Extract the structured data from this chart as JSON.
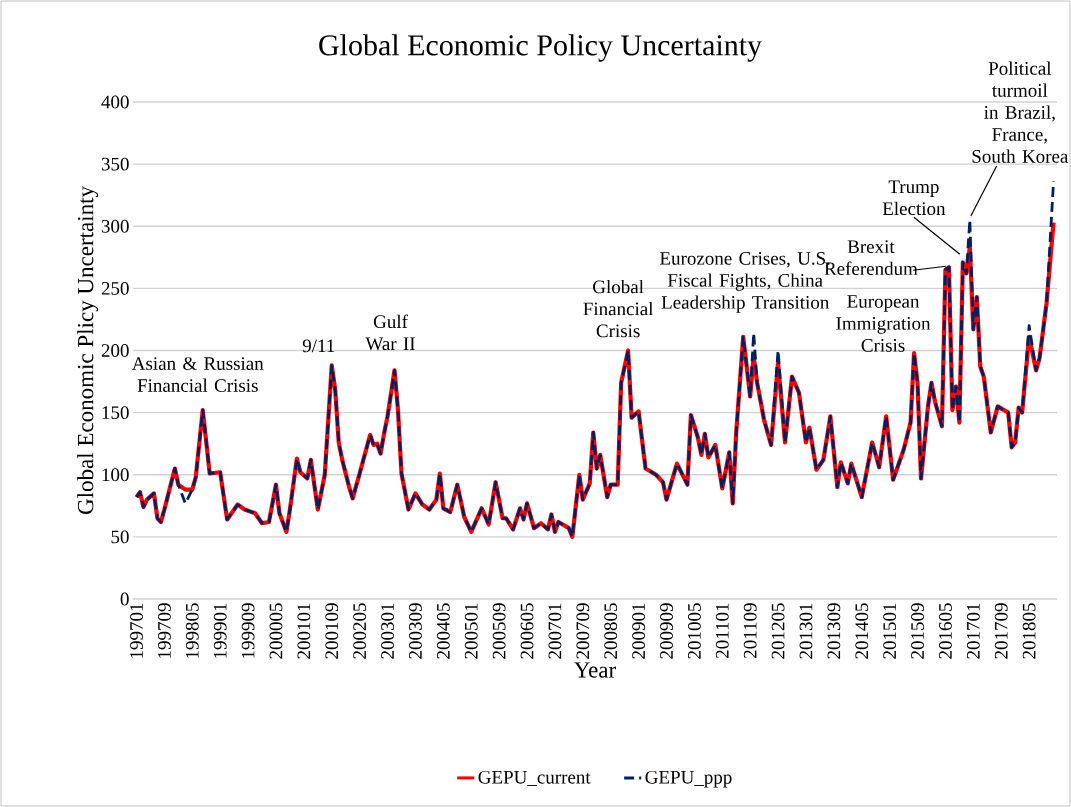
{
  "chart_data": {
    "type": "line",
    "title": "Global Economic Policy Uncertainty",
    "xlabel": "Year",
    "ylabel": "Global Economic Plicy Uncertainty",
    "x": [
      "1997-01",
      "1997-02",
      "1997-03",
      "1997-04",
      "1997-06",
      "1997-07",
      "1997-08",
      "1997-09",
      "1997-12",
      "1998-01",
      "1998-03",
      "1998-05",
      "1998-06",
      "1998-08",
      "1998-10",
      "1999-01",
      "1999-03",
      "1999-06",
      "1999-08",
      "1999-11",
      "2000-01",
      "2000-03",
      "2000-05",
      "2000-06",
      "2000-08",
      "2000-09",
      "2000-11",
      "2000-12",
      "2001-02",
      "2001-03",
      "2001-04",
      "2001-05",
      "2001-07",
      "2001-09",
      "2001-10",
      "2001-11",
      "2001-12",
      "2002-02",
      "2002-03",
      "2002-05",
      "2002-08",
      "2002-09",
      "2002-10",
      "2002-11",
      "2002-12",
      "2003-01",
      "2003-03",
      "2003-04",
      "2003-05",
      "2003-07",
      "2003-09",
      "2003-11",
      "2004-01",
      "2004-03",
      "2004-04",
      "2004-05",
      "2004-07",
      "2004-09",
      "2004-11",
      "2005-01",
      "2005-04",
      "2005-06",
      "2005-08",
      "2005-10",
      "2005-11",
      "2006-01",
      "2006-03",
      "2006-04",
      "2006-05",
      "2006-07",
      "2006-09",
      "2006-11",
      "2006-12",
      "2007-01",
      "2007-02",
      "2007-05",
      "2007-06",
      "2007-08",
      "2007-09",
      "2007-11",
      "2007-12",
      "2008-01",
      "2008-02",
      "2008-04",
      "2008-05",
      "2008-07",
      "2008-08",
      "2008-10",
      "2008-11",
      "2009-01",
      "2009-03",
      "2009-06",
      "2009-08",
      "2009-09",
      "2009-12",
      "2010-03",
      "2010-04",
      "2010-06",
      "2010-07",
      "2010-08",
      "2010-09",
      "2010-11",
      "2011-01",
      "2011-03",
      "2011-04",
      "2011-05",
      "2011-07",
      "2011-09",
      "2011-10",
      "2011-11",
      "2012-01",
      "2012-03",
      "2012-05",
      "2012-07",
      "2012-09",
      "2012-11",
      "2013-01",
      "2013-02",
      "2013-04",
      "2013-06",
      "2013-08",
      "2013-10",
      "2013-11",
      "2014-01",
      "2014-02",
      "2014-05",
      "2014-08",
      "2014-10",
      "2014-12",
      "2015-02",
      "2015-05",
      "2015-07",
      "2015-08",
      "2015-09",
      "2015-10",
      "2015-12",
      "2016-01",
      "2016-02",
      "2016-04",
      "2016-05",
      "2016-06",
      "2016-07",
      "2016-08",
      "2016-09",
      "2016-10",
      "2016-11",
      "2016-12",
      "2017-01",
      "2017-02",
      "2017-03",
      "2017-04",
      "2017-06",
      "2017-08",
      "2017-11",
      "2017-12",
      "2018-01",
      "2018-02",
      "2018-03",
      "2018-05",
      "2018-07",
      "2018-08",
      "2018-10",
      "2018-12"
    ],
    "series": [
      {
        "name": "GEPU_current",
        "color": "#ff0000",
        "line_style": "solid",
        "values": [
          82,
          86,
          74,
          80,
          85,
          65,
          62,
          72,
          105,
          92,
          88,
          88,
          98,
          152,
          101,
          102,
          64,
          76,
          72,
          69,
          61,
          62,
          92,
          69,
          54,
          72,
          113,
          102,
          97,
          112,
          92,
          72,
          100,
          188,
          168,
          126,
          112,
          90,
          81,
          101,
          132,
          124,
          125,
          117,
          133,
          147,
          184,
          152,
          101,
          72,
          85,
          76,
          72,
          80,
          101,
          73,
          70,
          92,
          66,
          54,
          73,
          60,
          94,
          65,
          65,
          56,
          73,
          64,
          77,
          57,
          61,
          56,
          68,
          54,
          62,
          57,
          50,
          100,
          80,
          93,
          134,
          105,
          116,
          82,
          92,
          92,
          174,
          200,
          146,
          151,
          105,
          100,
          94,
          80,
          109,
          92,
          148,
          130,
          116,
          133,
          114,
          124,
          89,
          118,
          77,
          134,
          211,
          163,
          195,
          174,
          144,
          124,
          190,
          126,
          179,
          166,
          126,
          138,
          104,
          112,
          147,
          90,
          110,
          93,
          109,
          82,
          126,
          106,
          147,
          96,
          120,
          142,
          198,
          174,
          97,
          155,
          174,
          159,
          139,
          265,
          267,
          152,
          171,
          142,
          271,
          262,
          283,
          217,
          243,
          187,
          179,
          134,
          155,
          150,
          122,
          126,
          154,
          150,
          211,
          184,
          194,
          238,
          303
        ]
      },
      {
        "name": "GEPU_ppp",
        "color": "#002060",
        "line_style": "dashed",
        "values": [
          82,
          86,
          74,
          80,
          85,
          65,
          62,
          72,
          105,
          92,
          77,
          88,
          98,
          152,
          101,
          102,
          64,
          76,
          72,
          69,
          61,
          62,
          92,
          69,
          54,
          72,
          113,
          102,
          97,
          112,
          92,
          72,
          100,
          188,
          168,
          126,
          112,
          90,
          81,
          101,
          132,
          124,
          125,
          117,
          133,
          147,
          184,
          152,
          101,
          72,
          85,
          76,
          72,
          80,
          101,
          73,
          70,
          92,
          66,
          54,
          73,
          60,
          94,
          65,
          65,
          56,
          73,
          64,
          77,
          57,
          61,
          56,
          68,
          54,
          62,
          57,
          50,
          100,
          80,
          93,
          134,
          105,
          116,
          82,
          92,
          92,
          174,
          200,
          146,
          151,
          105,
          100,
          94,
          80,
          109,
          92,
          148,
          130,
          116,
          133,
          114,
          124,
          89,
          118,
          77,
          134,
          211,
          163,
          214,
          174,
          144,
          124,
          200,
          126,
          179,
          166,
          126,
          138,
          104,
          112,
          147,
          90,
          110,
          93,
          109,
          82,
          126,
          106,
          147,
          96,
          120,
          142,
          198,
          174,
          97,
          155,
          174,
          159,
          139,
          265,
          267,
          152,
          171,
          142,
          271,
          262,
          305,
          217,
          243,
          187,
          179,
          134,
          155,
          150,
          122,
          126,
          154,
          150,
          220,
          184,
          194,
          238,
          336
        ]
      }
    ],
    "xlim": [
      "1996-12",
      "2019-01"
    ],
    "xticks": [
      {
        "value": "1997-01",
        "label": "199701"
      },
      {
        "value": "1997-09",
        "label": "199709"
      },
      {
        "value": "1998-05",
        "label": "199805"
      },
      {
        "value": "1999-01",
        "label": "199901"
      },
      {
        "value": "1999-09",
        "label": "199909"
      },
      {
        "value": "2000-05",
        "label": "200005"
      },
      {
        "value": "2001-01",
        "label": "200101"
      },
      {
        "value": "2001-09",
        "label": "200109"
      },
      {
        "value": "2002-05",
        "label": "200205"
      },
      {
        "value": "2003-01",
        "label": "200301"
      },
      {
        "value": "2003-09",
        "label": "200309"
      },
      {
        "value": "2004-05",
        "label": "200405"
      },
      {
        "value": "2005-01",
        "label": "200501"
      },
      {
        "value": "2005-09",
        "label": "200509"
      },
      {
        "value": "2006-05",
        "label": "200605"
      },
      {
        "value": "2007-01",
        "label": "200701"
      },
      {
        "value": "2007-09",
        "label": "200709"
      },
      {
        "value": "2008-05",
        "label": "200805"
      },
      {
        "value": "2009-01",
        "label": "200901"
      },
      {
        "value": "2009-09",
        "label": "200909"
      },
      {
        "value": "2010-05",
        "label": "201005"
      },
      {
        "value": "2011-01",
        "label": "201101"
      },
      {
        "value": "2011-09",
        "label": "201109"
      },
      {
        "value": "2012-05",
        "label": "201205"
      },
      {
        "value": "2013-01",
        "label": "201301"
      },
      {
        "value": "2013-09",
        "label": "201309"
      },
      {
        "value": "2014-05",
        "label": "201405"
      },
      {
        "value": "2015-01",
        "label": "201501"
      },
      {
        "value": "2015-09",
        "label": "201509"
      },
      {
        "value": "2016-05",
        "label": "201605"
      },
      {
        "value": "2017-01",
        "label": "201701"
      },
      {
        "value": "2017-09",
        "label": "201709"
      },
      {
        "value": "2018-05",
        "label": "201805"
      }
    ],
    "ylim": [
      0,
      400
    ],
    "yticks": [
      0,
      50,
      100,
      150,
      200,
      250,
      300,
      350,
      400
    ],
    "grid": "y",
    "legend": "bottom",
    "marker": "none",
    "annotations": [
      {
        "text": "Asian & Russian Financial Crisis",
        "x": "1998-08",
        "y": 152
      },
      {
        "text": "9/11",
        "x": "2001-09",
        "y": 188
      },
      {
        "text": "Gulf War II",
        "x": "2003-03",
        "y": 184
      },
      {
        "text": "Global Financial Crisis",
        "x": "2008-10",
        "y": 200
      },
      {
        "text": "Eurozone Crises, U.S. Fiscal Fights, China Leadership Transition",
        "x": "2011-07",
        "y": 211
      },
      {
        "text": "European Immigration Crisis",
        "x": "2015-08",
        "y": 198
      },
      {
        "text": "Brexit Referendum",
        "x": "2016-06",
        "y": 267
      },
      {
        "text": "Trump Election",
        "x": "2016-10",
        "y": 271
      },
      {
        "text": "Political turmoil in Brazil, France, South Korea",
        "x": "2016-12",
        "y": 305
      }
    ]
  }
}
